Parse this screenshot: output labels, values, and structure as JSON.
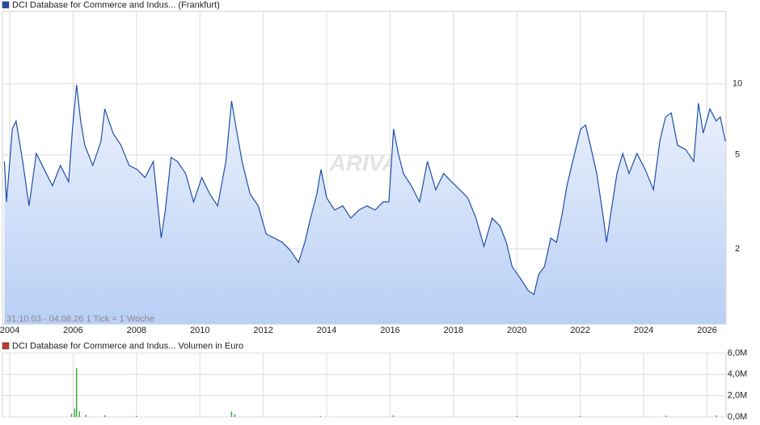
{
  "chart_data": [
    {
      "type": "line",
      "annotation": "31.10.03 - 04.08.26   1 Tick = 1 Woche",
      "watermark": "ARIVA",
      "log_scale": true,
      "grid": true,
      "xlim": [
        2003.77,
        2026.6
      ],
      "ylim": [
        0.96,
        20.3
      ],
      "xticks": [
        2004,
        2006,
        2008,
        2010,
        2012,
        2014,
        2016,
        2018,
        2020,
        2022,
        2024,
        2026
      ],
      "yticks": [
        2,
        5,
        10
      ],
      "x": [
        2003.83,
        2003.9,
        2004.08,
        2004.2,
        2004.41,
        2004.61,
        2004.84,
        2005.09,
        2005.35,
        2005.6,
        2005.86,
        2005.98,
        2006.11,
        2006.24,
        2006.37,
        2006.62,
        2006.88,
        2007.0,
        2007.26,
        2007.51,
        2007.77,
        2008.02,
        2008.27,
        2008.53,
        2008.78,
        2008.91,
        2009.09,
        2009.29,
        2009.55,
        2009.8,
        2010.06,
        2010.31,
        2010.56,
        2010.82,
        2011.0,
        2011.15,
        2011.33,
        2011.58,
        2011.84,
        2012.09,
        2012.35,
        2012.6,
        2012.85,
        2013.11,
        2013.31,
        2013.49,
        2013.69,
        2013.82,
        2014.0,
        2014.25,
        2014.51,
        2014.76,
        2015.02,
        2015.27,
        2015.53,
        2015.78,
        2015.96,
        2016.11,
        2016.26,
        2016.42,
        2016.67,
        2016.93,
        2017.18,
        2017.44,
        2017.69,
        2017.94,
        2018.2,
        2018.45,
        2018.71,
        2018.96,
        2019.22,
        2019.47,
        2019.67,
        2019.85,
        2020.11,
        2020.36,
        2020.54,
        2020.69,
        2020.87,
        2021.07,
        2021.25,
        2021.43,
        2021.58,
        2021.76,
        2022.01,
        2022.17,
        2022.32,
        2022.52,
        2022.73,
        2022.83,
        2022.98,
        2023.16,
        2023.34,
        2023.54,
        2023.79,
        2024.05,
        2024.31,
        2024.51,
        2024.69,
        2024.87,
        2025.07,
        2025.32,
        2025.58,
        2025.73,
        2025.88,
        2026.09,
        2026.29,
        2026.42,
        2026.58
      ],
      "series": [
        {
          "name": "DCI Database for Commerce and Indus... (Frankfurt)",
          "color": "#1f4fa8",
          "values": [
            4.69,
            3.16,
            6.43,
            6.96,
            4.69,
            3.04,
            5.07,
            4.34,
            3.7,
            4.51,
            3.85,
            6.43,
            9.9,
            6.96,
            5.49,
            4.51,
            5.71,
            7.83,
            6.18,
            5.49,
            4.51,
            4.34,
            4.01,
            4.69,
            2.22,
            2.92,
            4.88,
            4.69,
            4.17,
            3.16,
            4.01,
            3.42,
            3.04,
            4.69,
            8.47,
            6.43,
            4.69,
            3.42,
            3.04,
            2.31,
            2.22,
            2.13,
            1.97,
            1.75,
            2.13,
            2.7,
            3.42,
            4.34,
            3.29,
            2.92,
            3.04,
            2.7,
            2.92,
            3.04,
            2.92,
            3.16,
            3.16,
            6.43,
            5.07,
            4.17,
            3.7,
            3.16,
            4.69,
            3.56,
            4.17,
            3.85,
            3.56,
            3.29,
            2.7,
            2.05,
            2.7,
            2.49,
            2.13,
            1.68,
            1.5,
            1.33,
            1.28,
            1.56,
            1.68,
            2.22,
            2.13,
            2.81,
            3.7,
            4.69,
            6.43,
            6.69,
            5.49,
            4.17,
            2.7,
            2.13,
            2.92,
            4.17,
            5.07,
            4.17,
            5.07,
            4.34,
            3.56,
            5.71,
            7.24,
            7.53,
            5.49,
            5.28,
            4.69,
            8.28,
            6.18,
            7.83,
            6.96,
            7.24,
            5.71
          ]
        }
      ]
    },
    {
      "type": "bar",
      "xlim": [
        2003.77,
        2026.6
      ],
      "ylim": [
        0,
        6000000
      ],
      "xticks": [
        2004,
        2006,
        2008,
        2010,
        2012,
        2014,
        2016,
        2018,
        2020,
        2022,
        2024,
        2026
      ],
      "yticks": [
        {
          "value": 0,
          "label": "0,0M"
        },
        {
          "value": 2000000,
          "label": "2,0M"
        },
        {
          "value": 4000000,
          "label": "4,0M"
        },
        {
          "value": 6000000,
          "label": "6,0M"
        }
      ],
      "legend_color": "#c0392b",
      "x": [
        2005.95,
        2006.05,
        2006.11,
        2006.2,
        2006.4,
        2007.0,
        2008.0,
        2011.0,
        2011.1,
        2013.8,
        2016.1,
        2020.0,
        2022.0,
        2024.7,
        2026.3
      ],
      "series": [
        {
          "name": "DCI Database for Commerce and Indus... Volumen in Euro",
          "color": "#3aa63a",
          "values": [
            300000,
            800000,
            4600000,
            500000,
            200000,
            150000,
            100000,
            500000,
            250000,
            100000,
            150000,
            100000,
            100000,
            120000,
            150000
          ]
        }
      ]
    }
  ]
}
